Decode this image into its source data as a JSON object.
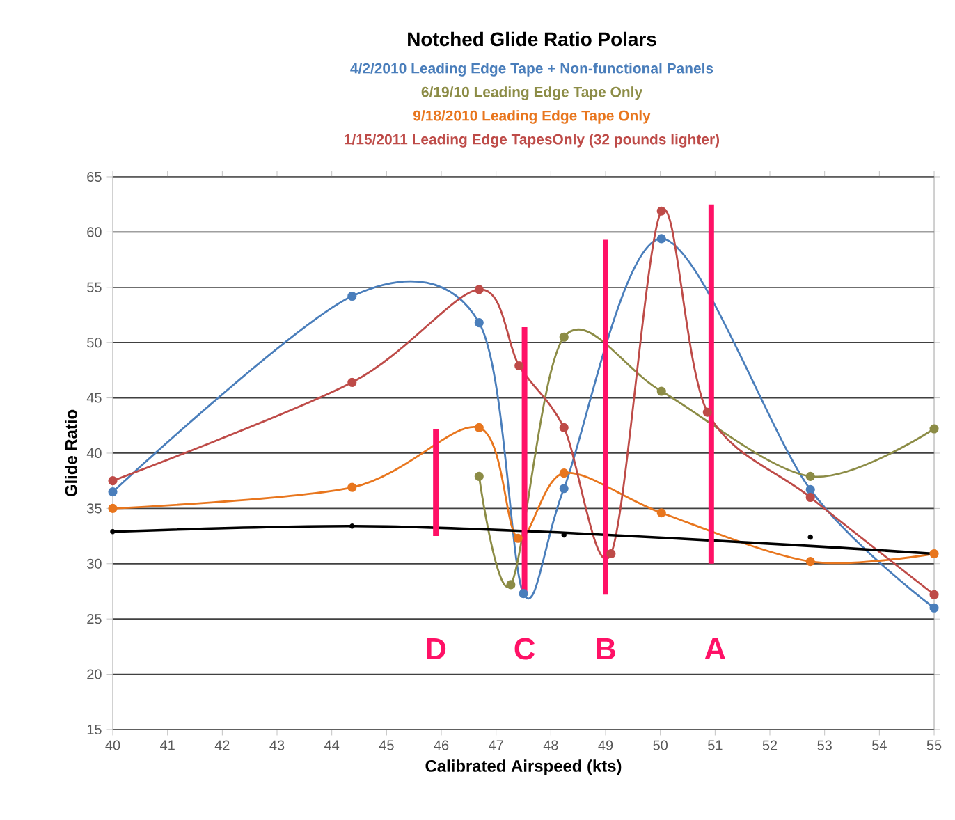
{
  "chart_data": {
    "type": "line",
    "title": "Notched Glide Ratio Polars",
    "xlabel": "Calibrated Airspeed (kts)",
    "ylabel": "Glide Ratio",
    "xlim": [
      40,
      55
    ],
    "ylim": [
      15,
      65
    ],
    "xticks": [
      40,
      41,
      42,
      43,
      44,
      45,
      46,
      47,
      48,
      49,
      50,
      51,
      52,
      53,
      54,
      55
    ],
    "yticks": [
      15,
      20,
      25,
      30,
      35,
      40,
      45,
      50,
      55,
      60,
      65
    ],
    "grid": "y",
    "marker": "circle",
    "series": [
      {
        "name": "4/2/2010 Leading Edge Tape + Non-functional Panels",
        "color": "#4a7ebb",
        "x": [
          40,
          44.37,
          46.69,
          47.5,
          48.24,
          50.02,
          52.74,
          55
        ],
        "values": [
          36.5,
          54.2,
          51.8,
          27.3,
          36.8,
          59.4,
          36.7,
          26
        ]
      },
      {
        "name": "6/19/10 Leading Edge Tape Only",
        "color": "#8c8c46",
        "x": [
          46.69,
          47.27,
          48.24,
          50.02,
          52.74,
          55
        ],
        "values": [
          37.9,
          28.1,
          50.5,
          45.6,
          37.9,
          42.2
        ]
      },
      {
        "name": "9/18/2010 Leading Edge Tape Only",
        "color": "#e8761e",
        "x": [
          40,
          44.37,
          46.69,
          47.4,
          48.24,
          50.02,
          52.74,
          55
        ],
        "values": [
          35,
          36.9,
          42.3,
          32.3,
          38.2,
          34.6,
          30.2,
          30.9
        ]
      },
      {
        "name": "1/15/2011 Leading Edge TapesOnly (32 pounds lighter)",
        "color": "#be4b48",
        "x": [
          40,
          44.37,
          46.69,
          47.42,
          48.24,
          49.1,
          50.02,
          50.86,
          52.74,
          55
        ],
        "values": [
          37.5,
          46.4,
          54.8,
          47.9,
          42.3,
          30.9,
          61.9,
          43.7,
          36,
          27.2
        ]
      },
      {
        "type": "scatter",
        "color": "#000000",
        "x": [
          40,
          44.37,
          48.24,
          52.74
        ],
        "values": [
          32.9,
          33.4,
          32.6,
          32.4
        ]
      },
      {
        "type": "line",
        "marker": "none",
        "color": "#000000",
        "x": [
          40,
          44.37,
          48.24,
          52.74,
          55
        ],
        "values": [
          32.9,
          33.4,
          32.8,
          31.6,
          30.9
        ]
      },
      {
        "type": "line",
        "marker": "none",
        "color": "#ff1166",
        "x": [
          45.9,
          45.9
        ],
        "values": [
          32.5,
          42.2
        ]
      },
      {
        "type": "line",
        "marker": "none",
        "color": "#ff1166",
        "x": [
          47.52,
          47.52
        ],
        "values": [
          27.2,
          51.4
        ]
      },
      {
        "type": "line",
        "marker": "none",
        "color": "#ff1166",
        "x": [
          49.0,
          49.0
        ],
        "values": [
          27.2,
          59.3
        ]
      },
      {
        "type": "line",
        "marker": "none",
        "color": "#ff1166",
        "x": [
          50.93,
          50.93
        ],
        "values": [
          30,
          62.5
        ]
      }
    ],
    "annotations": [
      {
        "text": "D",
        "x": 45.9,
        "y": 22.3
      },
      {
        "text": "C",
        "x": 47.52,
        "y": 22.3
      },
      {
        "text": "B",
        "x": 49.0,
        "y": 22.3
      },
      {
        "text": "A",
        "x": 51.0,
        "y": 22.3
      }
    ]
  }
}
